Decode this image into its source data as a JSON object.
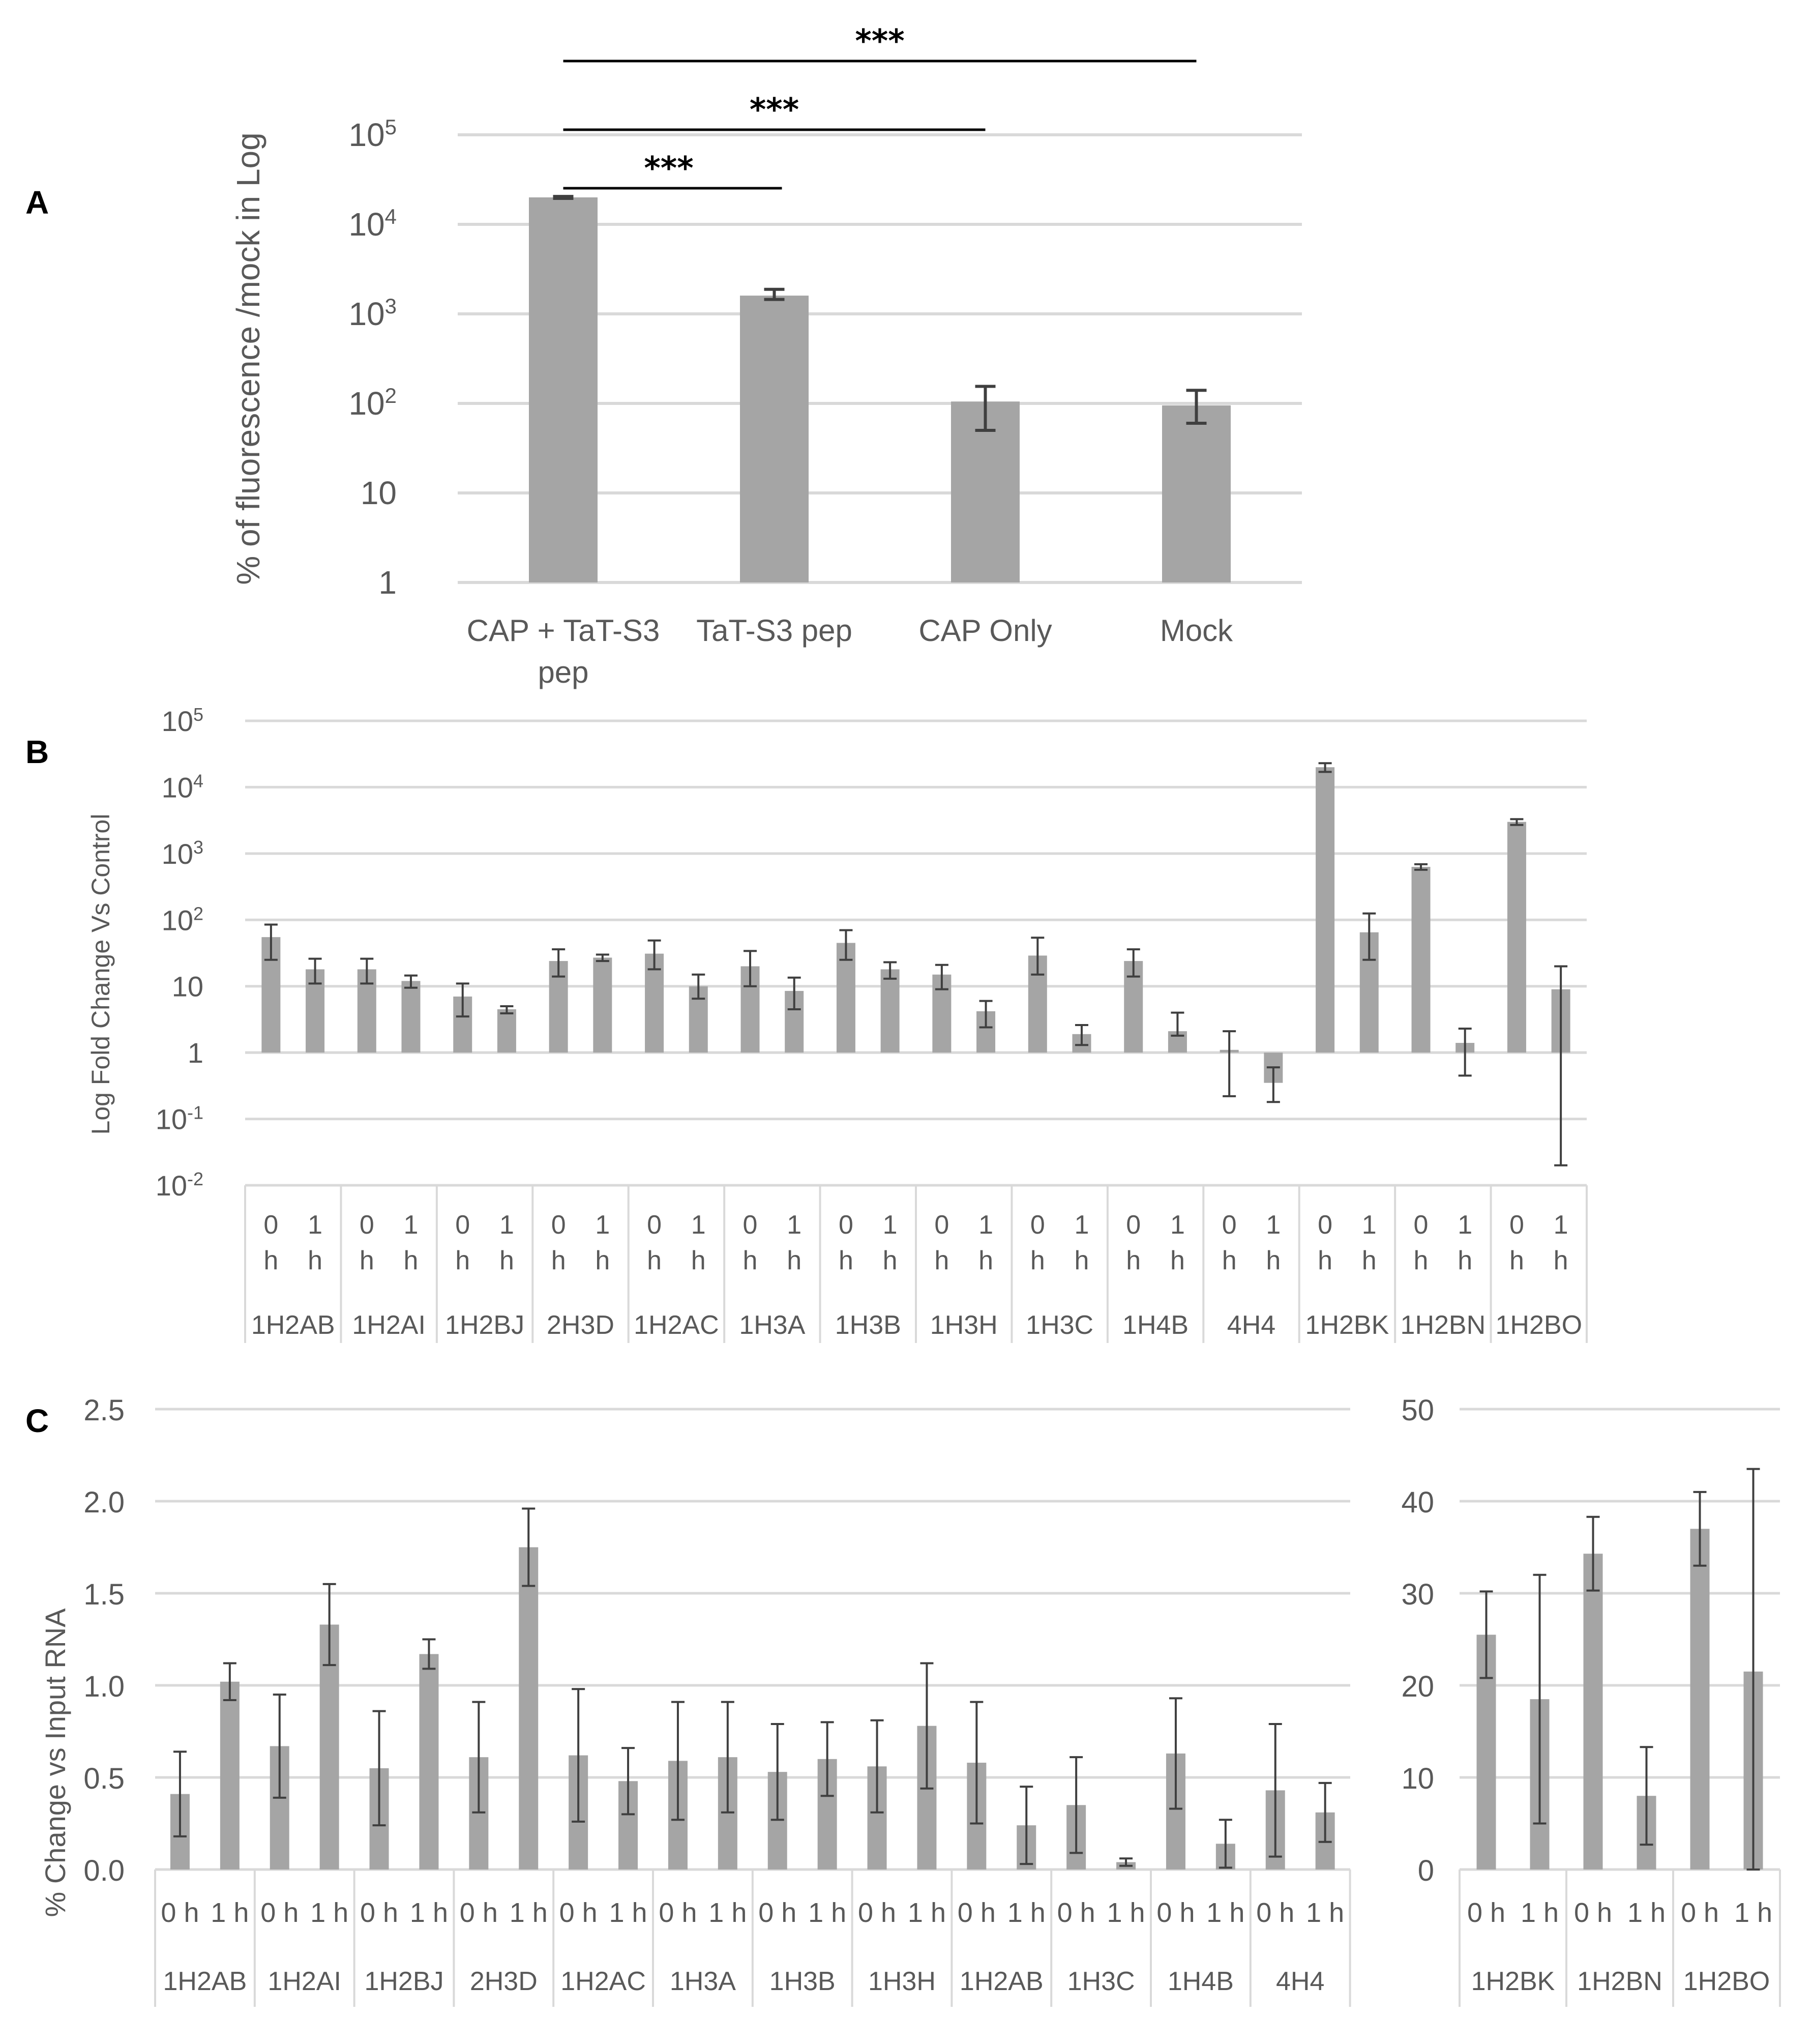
{
  "colors": {
    "bar": "#a5a5a5",
    "error": "#3f3f3f",
    "grid": "#d9d9d9",
    "text": "#595959",
    "sig": "#000000"
  },
  "chart_data": [
    {
      "panel": "A",
      "type": "bar",
      "scale": "log",
      "ylabel": "% of fluorescence /mock in Log",
      "y_ticks": [
        "1",
        "10",
        "10^2",
        "10^3",
        "10^4",
        "10^5"
      ],
      "ylim": [
        1,
        100000
      ],
      "categories": [
        "CAP + TaT-S3 pep",
        "TaT-S3 pep",
        "CAP Only",
        "Mock"
      ],
      "values": [
        20000,
        1600,
        105,
        95
      ],
      "err_low": [
        500,
        150,
        55,
        35
      ],
      "err_high": [
        500,
        280,
        50,
        45
      ],
      "significance": [
        {
          "from": 0,
          "to": 1,
          "label": "***"
        },
        {
          "from": 0,
          "to": 2,
          "label": "***"
        },
        {
          "from": 0,
          "to": 3,
          "label": "***"
        }
      ]
    },
    {
      "panel": "B",
      "type": "bar",
      "scale": "log",
      "ylabel": "Log Fold Change Vs Control",
      "y_ticks": [
        "10^-2",
        "10^-1",
        "1",
        "10",
        "10^2",
        "10^3",
        "10^4",
        "10^5"
      ],
      "ylim": [
        0.01,
        100000
      ],
      "groups": [
        "1H2AB",
        "1H2AI",
        "1H2BJ",
        "2H3D",
        "1H2AC",
        "1H3A",
        "1H3B",
        "1H3H",
        "1H3C",
        "1H4B",
        "4H4",
        "1H2BK",
        "1H2BN",
        "1H2BO"
      ],
      "timepoints": [
        "0 h",
        "1 h"
      ],
      "values": [
        55,
        18,
        18,
        12,
        7,
        4.5,
        24,
        27,
        31,
        10,
        20,
        8.5,
        45,
        18,
        15,
        4.2,
        29,
        1.9,
        24,
        2.1,
        1.1,
        0.35,
        20000,
        65,
        630,
        1.4,
        3000,
        9
      ],
      "err_low": [
        30,
        7,
        7,
        2.5,
        3.5,
        0.6,
        10,
        3,
        13,
        3.5,
        10,
        4,
        20,
        5,
        6,
        1.8,
        14,
        0.6,
        10,
        0.3,
        0.88,
        0.17,
        3000,
        40,
        60,
        0.95,
        300,
        8.98
      ],
      "err_high": [
        30,
        8,
        8,
        2.5,
        4,
        0.5,
        12,
        3,
        18,
        5,
        14,
        5,
        25,
        5,
        6,
        1.8,
        25,
        0.7,
        12,
        1.9,
        1.0,
        0.25,
        3000,
        60,
        60,
        0.9,
        300,
        11
      ]
    },
    {
      "panel": "C",
      "type": "bar",
      "scale": "linear",
      "ylabel": "% Change vs Input RNA",
      "y_ticks": [
        "0.0",
        "0.5",
        "1.0",
        "1.5",
        "2.0",
        "2.5"
      ],
      "ylim": [
        0,
        2.5
      ],
      "groups": [
        "1H2AB",
        "1H2AI",
        "1H2BJ",
        "2H3D",
        "1H2AC",
        "1H3A",
        "1H3B",
        "1H3H",
        "1H2AB",
        "1H3C",
        "1H4B",
        "4H4"
      ],
      "timepoints": [
        "0 h",
        "1 h"
      ],
      "values": [
        0.41,
        1.02,
        0.67,
        1.33,
        0.55,
        1.17,
        0.61,
        1.75,
        0.62,
        0.48,
        0.59,
        0.61,
        0.53,
        0.6,
        0.56,
        0.78,
        0.58,
        0.24,
        0.35,
        0.04,
        0.63,
        0.14,
        0.43,
        0.31
      ],
      "errors": [
        0.23,
        0.1,
        0.28,
        0.22,
        0.31,
        0.08,
        0.3,
        0.21,
        0.36,
        0.18,
        0.32,
        0.3,
        0.26,
        0.2,
        0.25,
        0.34,
        0.33,
        0.21,
        0.26,
        0.02,
        0.3,
        0.13,
        0.36,
        0.16
      ]
    },
    {
      "panel": "C-inset",
      "type": "bar",
      "scale": "linear",
      "y_ticks": [
        "0",
        "10",
        "20",
        "30",
        "40",
        "50"
      ],
      "ylim": [
        0,
        50
      ],
      "groups": [
        "1H2BK",
        "1H2BN",
        "1H2BO"
      ],
      "timepoints": [
        "0 h",
        "1 h"
      ],
      "values": [
        25.5,
        18.5,
        34.3,
        8.0,
        37.0,
        21.5
      ],
      "errors": [
        4.7,
        13.5,
        4.0,
        5.3,
        4.0,
        22.0
      ]
    }
  ],
  "panels": {
    "a": "A",
    "b": "B",
    "c": "C"
  }
}
